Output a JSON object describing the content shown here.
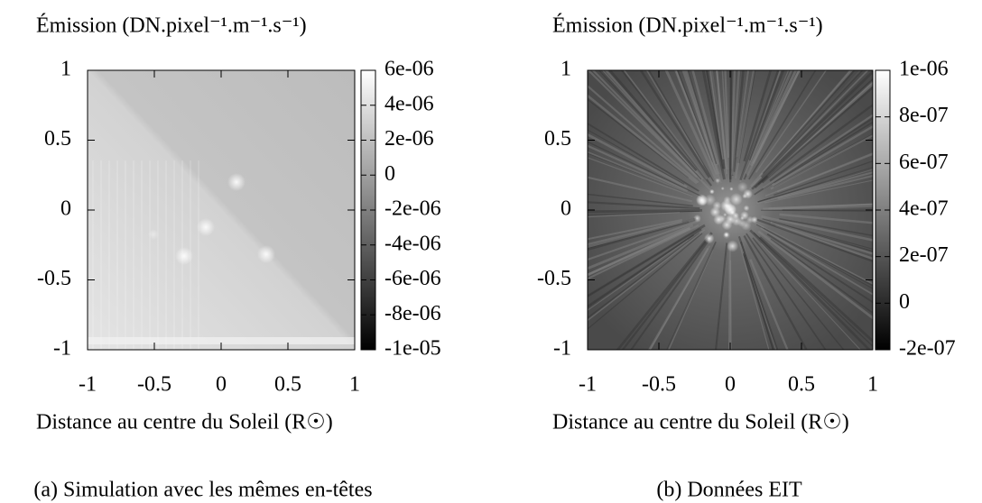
{
  "chart_data": [
    {
      "type": "heatmap",
      "title": "Émission (DN.pixel⁻¹.m⁻¹.s⁻¹)",
      "xlabel": "Distance au centre du Soleil (R☉)",
      "caption": "(a) Simulation avec les mêmes en-têtes",
      "xlim": [
        -1,
        1
      ],
      "xticks": [
        -1,
        -0.5,
        0,
        0.5,
        1
      ],
      "ylim": [
        -1,
        1
      ],
      "yticks": [
        -1,
        -0.5,
        0,
        0.5,
        1
      ],
      "clim": [
        -1e-05,
        6e-06
      ],
      "cticks": [
        {
          "value": 6e-06,
          "label": "6e-06"
        },
        {
          "value": 4e-06,
          "label": "4e-06"
        },
        {
          "value": 2e-06,
          "label": "2e-06"
        },
        0,
        {
          "value": -2e-06,
          "label": "-2e-06"
        },
        {
          "value": -4e-06,
          "label": "-4e-06"
        },
        {
          "value": -6e-06,
          "label": "-6e-06"
        },
        {
          "value": -8e-06,
          "label": "-8e-06"
        },
        {
          "value": -1e-05,
          "label": "-1e-05"
        }
      ]
    },
    {
      "type": "heatmap",
      "title": "Émission (DN.pixel⁻¹.m⁻¹.s⁻¹)",
      "xlabel": "Distance au centre du Soleil (R☉)",
      "caption": "(b) Données EIT",
      "xlim": [
        -1,
        1
      ],
      "xticks": [
        -1,
        -0.5,
        0,
        0.5,
        1
      ],
      "ylim": [
        -1,
        1
      ],
      "yticks": [
        -1,
        -0.5,
        0,
        0.5,
        1
      ],
      "clim": [
        -2e-07,
        1e-06
      ],
      "cticks": [
        {
          "value": 1e-06,
          "label": "1e-06"
        },
        {
          "value": 8e-07,
          "label": "8e-07"
        },
        {
          "value": 6e-07,
          "label": "6e-07"
        },
        {
          "value": 4e-07,
          "label": "4e-07"
        },
        {
          "value": 2e-07,
          "label": "2e-07"
        },
        0,
        {
          "value": -2e-07,
          "label": "-2e-07"
        }
      ]
    }
  ]
}
